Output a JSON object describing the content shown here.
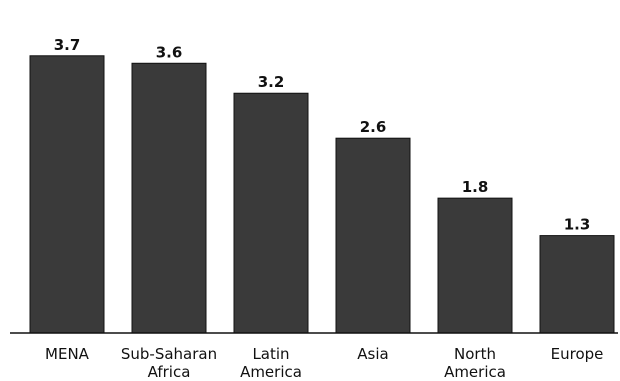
{
  "chart_data": {
    "type": "bar",
    "categories": [
      [
        "MENA"
      ],
      [
        "Sub-Saharan",
        "Africa"
      ],
      [
        "Latin",
        "America"
      ],
      [
        "Asia"
      ],
      [
        "North",
        "America"
      ],
      [
        "Europe"
      ]
    ],
    "values": [
      3.7,
      3.6,
      3.2,
      2.6,
      1.8,
      1.3
    ],
    "value_labels": [
      "3.7",
      "3.6",
      "3.2",
      "2.6",
      "1.8",
      "1.3"
    ],
    "ylim": [
      0,
      4
    ],
    "grid": false,
    "colors": {
      "bar": "#3a3a3a",
      "bar_edge": "#111111",
      "text": "#111111"
    }
  }
}
